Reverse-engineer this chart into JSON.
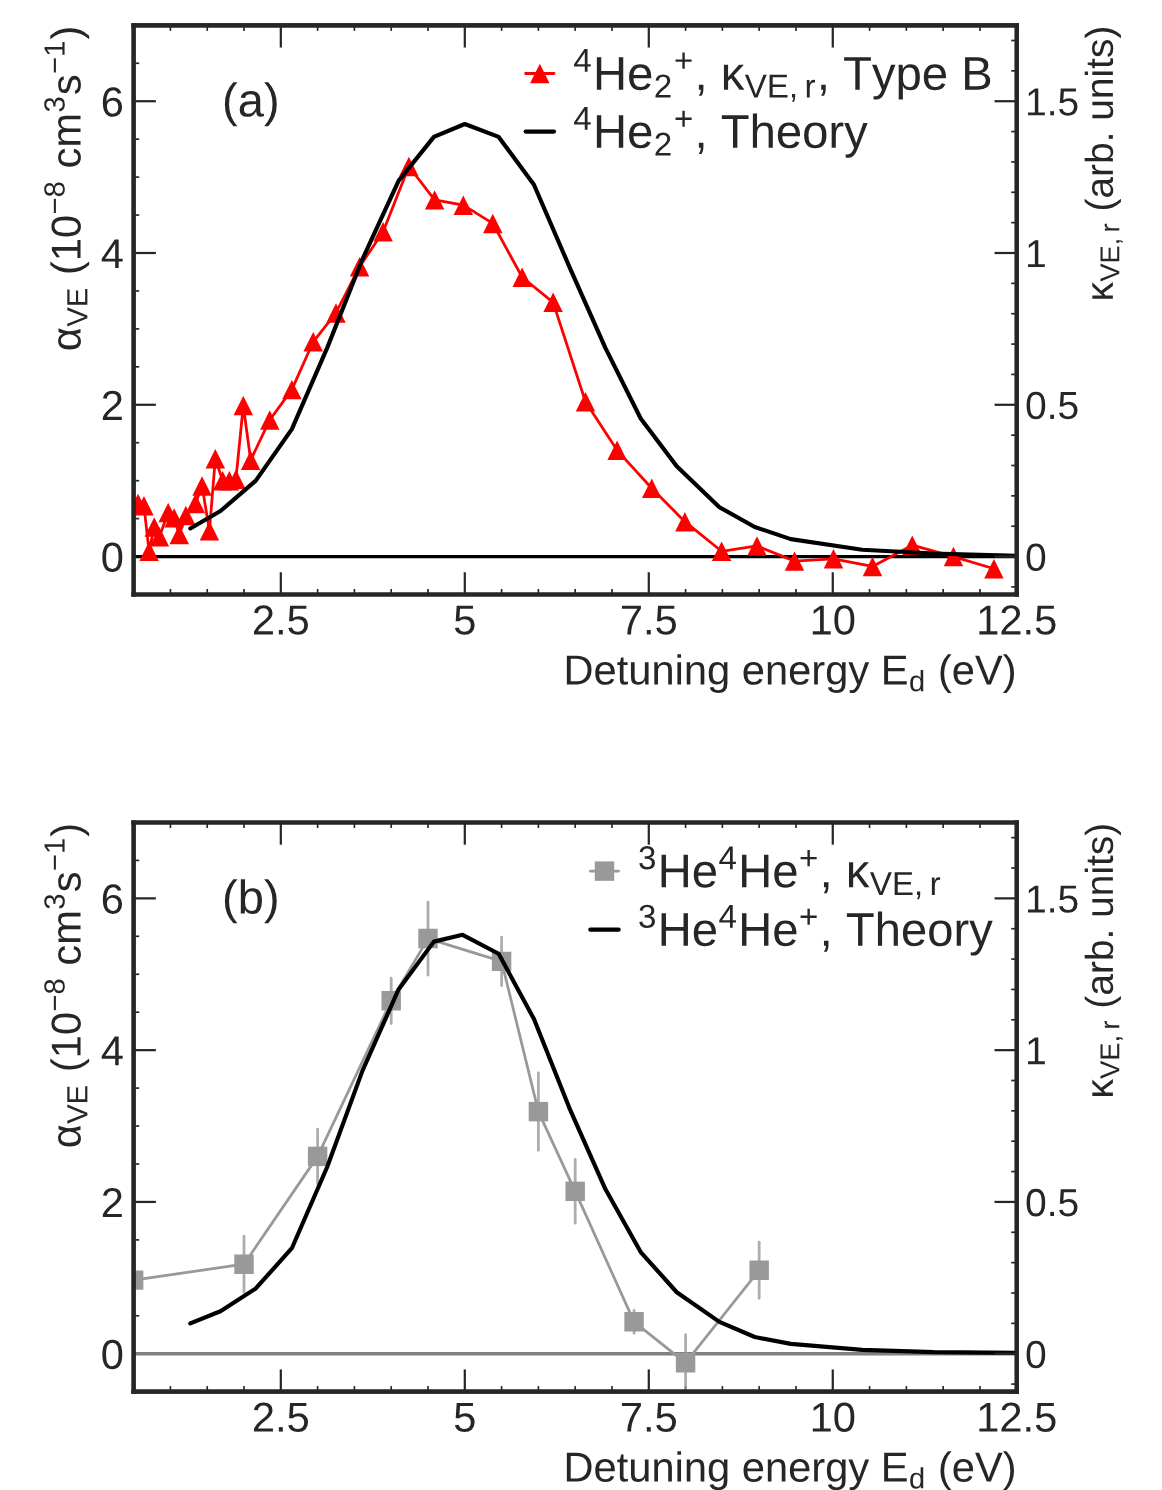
{
  "chart_data": [
    {
      "type": "line",
      "xlabel": "Detuning energy E$_{d}$ (eV)",
      "ylabel": "α$_{VE}$ (10$^{−8}$ cm$^{3}$s$^{−1}$)",
      "y2label": "κ$_{VE,r}$ (arb. units)",
      "xlim": [
        0.5,
        12.5
      ],
      "xticks": [
        2.5,
        5,
        7.5,
        10,
        12.5
      ],
      "ylim": [
        -0.5,
        7
      ],
      "yticks": [
        0,
        2,
        4,
        6
      ],
      "y2lim": [
        -0.125,
        1.75
      ],
      "y2ticks": [
        0,
        0.5,
        1,
        1.5
      ],
      "legend": "top right",
      "grid": false,
      "annotations": [
        "(a)"
      ],
      "ref_lines": [
        {
          "axis": "y",
          "value": 0,
          "color": "#000000"
        }
      ],
      "series": [
        {
          "name": "$^{4}$He$_{2}$$^{+}$, κ$_{VE,r}$, Type B",
          "color": "#ff0000",
          "marker": "triangle",
          "line_style": "solid",
          "x": [
            0.56,
            0.64,
            0.71,
            0.78,
            0.85,
            0.97,
            1.05,
            1.12,
            1.21,
            1.34,
            1.43,
            1.53,
            1.61,
            1.71,
            1.8,
            1.89,
            1.99,
            2.09,
            2.35,
            2.65,
            2.94,
            3.25,
            3.57,
            3.89,
            4.24,
            4.59,
            4.98,
            5.38,
            5.78,
            6.2,
            6.64,
            7.07,
            7.54,
            7.99,
            8.49,
            8.97,
            9.48,
            10.01,
            10.54,
            11.08,
            11.64,
            12.19
          ],
          "values": [
            0.7,
            0.67,
            0.07,
            0.39,
            0.26,
            0.58,
            0.51,
            0.29,
            0.54,
            0.7,
            0.93,
            0.34,
            1.29,
            1.0,
            1.0,
            1.02,
            1.99,
            1.27,
            1.8,
            2.2,
            2.83,
            3.21,
            3.82,
            4.28,
            5.14,
            4.7,
            4.63,
            4.39,
            3.68,
            3.35,
            2.04,
            1.4,
            0.9,
            0.46,
            0.07,
            0.14,
            -0.06,
            -0.03,
            -0.13,
            0.15,
            0.0,
            -0.16
          ]
        },
        {
          "name": "$^{4}$He$_{2}$$^{+}$, Theory",
          "color": "#000000",
          "marker": "none",
          "line_style": "solid",
          "x": [
            1.27,
            1.68,
            2.16,
            2.65,
            3.13,
            3.61,
            4.1,
            4.58,
            5.0,
            5.46,
            5.94,
            6.42,
            6.91,
            7.39,
            7.88,
            8.46,
            8.94,
            9.43,
            10.4,
            11.37,
            12.5
          ],
          "values": [
            0.37,
            0.6,
            1.0,
            1.68,
            2.75,
            3.92,
            4.95,
            5.53,
            5.7,
            5.53,
            4.9,
            3.82,
            2.75,
            1.82,
            1.19,
            0.65,
            0.39,
            0.23,
            0.09,
            0.04,
            0.01
          ]
        }
      ]
    },
    {
      "type": "line",
      "xlabel": "Detuning energy E$_{d}$ (eV)",
      "ylabel": "α$_{VE}$ (10$^{−8}$ cm$^{3}$s$^{−1}$)",
      "y2label": "κ$_{VE,r}$ (arb. units)",
      "xlim": [
        0.5,
        12.5
      ],
      "xticks": [
        2.5,
        5,
        7.5,
        10,
        12.5
      ],
      "ylim": [
        -0.5,
        7
      ],
      "yticks": [
        0,
        2,
        4,
        6
      ],
      "y2lim": [
        -0.125,
        1.75
      ],
      "y2ticks": [
        0,
        0.5,
        1,
        1.5
      ],
      "legend": "top right",
      "grid": false,
      "annotations": [
        "(b)"
      ],
      "ref_lines": [
        {
          "axis": "y",
          "value": 0,
          "color": "#808080"
        }
      ],
      "series": [
        {
          "name": "$^{3}$He$^{4}$He$^{+}$, κ$_{VE,r}$",
          "color": "#999999",
          "marker": "square",
          "line_style": "solid",
          "x": [
            0.5,
            2.0,
            3.0,
            4.0,
            4.5,
            5.5,
            6.0,
            6.5,
            7.3,
            8.0,
            9.0
          ],
          "values": [
            0.97,
            1.18,
            2.6,
            4.65,
            5.47,
            5.17,
            3.19,
            2.14,
            0.42,
            -0.12,
            1.1
          ],
          "errors": [
            null,
            0.37,
            0.36,
            0.3,
            0.48,
            0.32,
            0.51,
            0.42,
            0.15,
            0.37,
            0.37
          ]
        },
        {
          "name": "$^{3}$He$^{4}$He$^{+}$, Theory",
          "color": "#000000",
          "marker": "none",
          "line_style": "solid",
          "x": [
            1.27,
            1.68,
            2.16,
            2.65,
            3.13,
            3.61,
            4.1,
            4.58,
            4.97,
            5.46,
            5.94,
            6.42,
            6.91,
            7.39,
            7.88,
            8.46,
            8.94,
            9.43,
            10.4,
            11.37,
            12.5
          ],
          "values": [
            0.4,
            0.56,
            0.86,
            1.39,
            2.46,
            3.73,
            4.8,
            5.43,
            5.52,
            5.27,
            4.41,
            3.24,
            2.17,
            1.34,
            0.81,
            0.42,
            0.22,
            0.13,
            0.05,
            0.02,
            0.01
          ]
        }
      ]
    }
  ]
}
